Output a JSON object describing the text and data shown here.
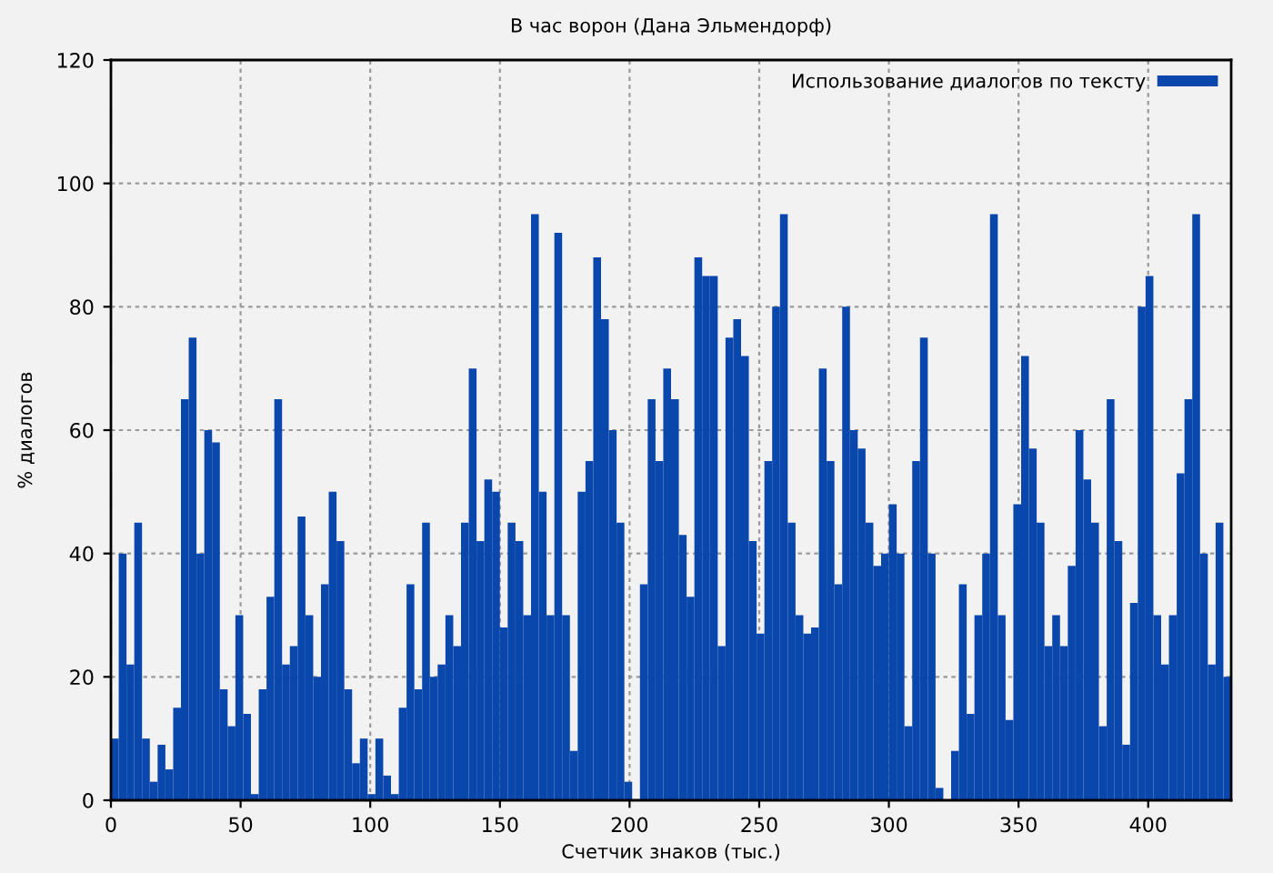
{
  "chart_data": {
    "type": "bar",
    "title": "В час ворон (Дана Эльмендорф)",
    "xlabel": "Счетчик знаков (тыс.)",
    "ylabel": "% диалогов",
    "x": [
      1.5,
      4.5,
      7.5,
      10.5,
      13.5,
      16.5,
      19.5,
      22.5,
      25.5,
      28.5,
      31.5,
      34.5,
      37.5,
      40.5,
      43.5,
      46.5,
      49.5,
      52.5,
      55.5,
      58.5,
      61.5,
      64.5,
      67.5,
      70.5,
      73.5,
      76.5,
      79.5,
      82.5,
      85.5,
      88.5,
      91.5,
      94.5,
      97.5,
      100.5,
      103.5,
      106.5,
      109.5,
      112.5,
      115.5,
      118.5,
      121.5,
      124.5,
      127.5,
      130.5,
      133.5,
      136.5,
      139.5,
      142.5,
      145.5,
      148.5,
      151.5,
      154.5,
      157.5,
      160.5,
      163.5,
      166.5,
      169.5,
      172.5,
      175.5,
      178.5,
      181.5,
      184.5,
      187.5,
      190.5,
      193.5,
      196.5,
      199.5,
      202.5,
      205.5,
      208.5,
      211.5,
      214.5,
      217.5,
      220.5,
      223.5,
      226.5,
      229.5,
      232.5,
      235.5,
      238.5,
      241.5,
      244.5,
      247.5,
      250.5,
      253.5,
      256.5,
      259.5,
      262.5,
      265.5,
      268.5,
      271.5,
      274.5,
      277.5,
      280.5,
      283.5,
      286.5,
      289.5,
      292.5,
      295.5,
      298.5,
      301.5,
      304.5,
      307.5,
      310.5,
      313.5,
      316.5,
      319.5,
      322.5,
      325.5,
      328.5,
      331.5,
      334.5,
      337.5,
      340.5,
      343.5,
      346.5,
      349.5,
      352.5,
      355.5,
      358.5,
      361.5,
      364.5,
      367.5,
      370.5,
      373.5,
      376.5,
      379.5,
      382.5,
      385.5,
      388.5,
      391.5,
      394.5,
      397.5,
      400.5,
      403.5,
      406.5,
      409.5,
      412.5,
      415.5,
      418.5,
      421.5,
      424.5,
      427.5,
      430.5
    ],
    "series": [
      {
        "name": "Использование диалогов по тексту",
        "color": "#0a47ac",
        "values": [
          10,
          40,
          22,
          45,
          10,
          3,
          9,
          5,
          15,
          65,
          75,
          40,
          60,
          58,
          18,
          12,
          30,
          14,
          1,
          18,
          33,
          65,
          22,
          25,
          46,
          30,
          20,
          35,
          50,
          42,
          18,
          6,
          10,
          1,
          10,
          4,
          1,
          15,
          35,
          18,
          45,
          20,
          22,
          30,
          25,
          45,
          70,
          42,
          52,
          50,
          28,
          45,
          42,
          30,
          95,
          50,
          30,
          92,
          30,
          8,
          50,
          55,
          88,
          78,
          60,
          45,
          3,
          0,
          35,
          65,
          55,
          70,
          65,
          43,
          33,
          88,
          85,
          85,
          25,
          75,
          78,
          72,
          42,
          27,
          55,
          80,
          95,
          45,
          30,
          27,
          28,
          70,
          55,
          35,
          80,
          60,
          57,
          45,
          38,
          40,
          48,
          40,
          12,
          55,
          75,
          40,
          2,
          0,
          8,
          35,
          14,
          30,
          40,
          95,
          30,
          13,
          48,
          72,
          57,
          45,
          25,
          30,
          25,
          38,
          60,
          52,
          45,
          12,
          65,
          42,
          9,
          32,
          80,
          85,
          30,
          22,
          30,
          53,
          65,
          95,
          40,
          22,
          45,
          20
        ]
      }
    ],
    "xlim": [
      0,
      432
    ],
    "ylim": [
      0,
      120
    ],
    "xticks": [
      0,
      50,
      100,
      150,
      200,
      250,
      300,
      350,
      400
    ],
    "yticks": [
      0,
      20,
      40,
      60,
      80,
      100,
      120
    ],
    "grid": true,
    "legend": "top right"
  }
}
